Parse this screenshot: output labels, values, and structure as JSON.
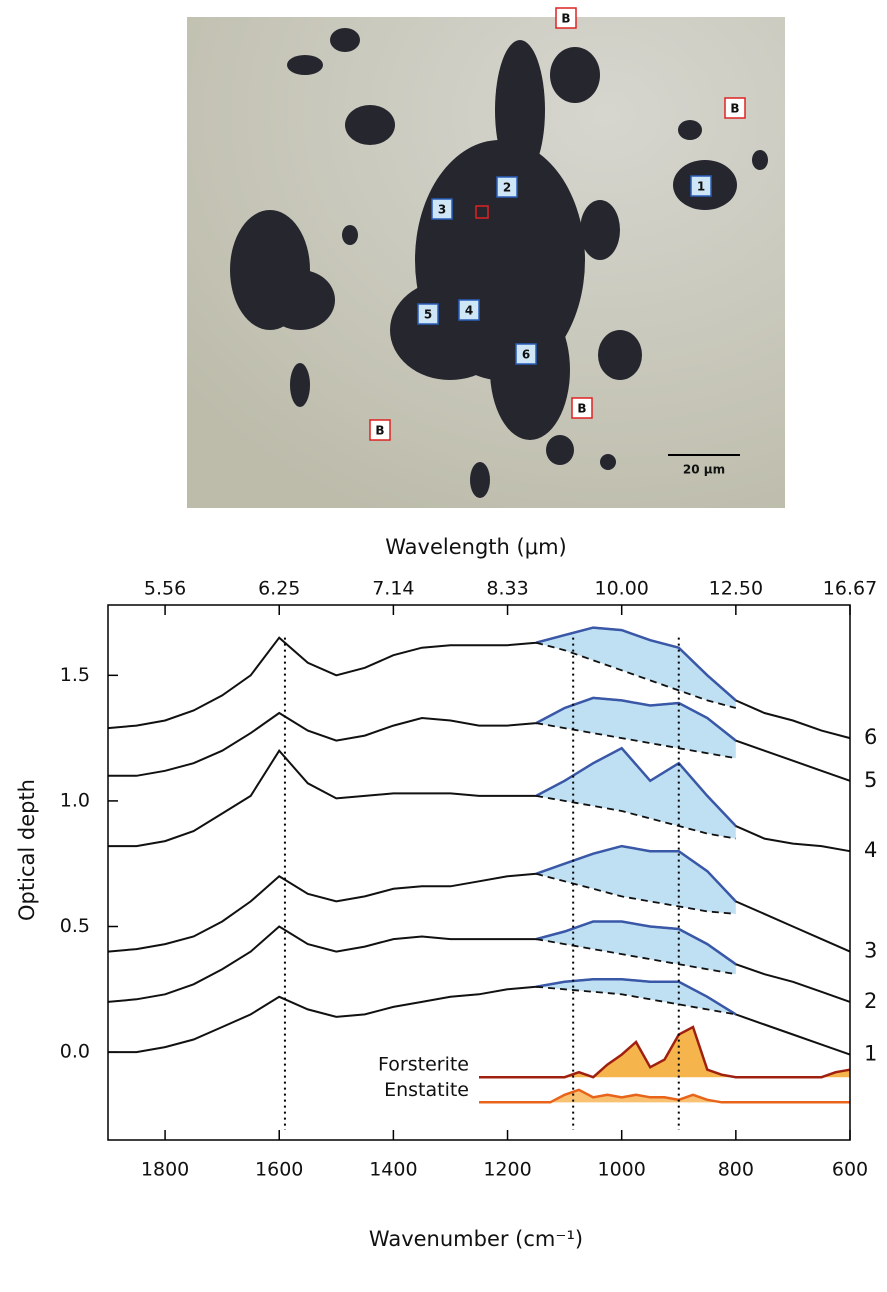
{
  "image": {
    "blue_labels": [
      "1",
      "2",
      "3",
      "4",
      "5",
      "6"
    ],
    "background_labels": [
      "B",
      "B",
      "B",
      "B"
    ],
    "scale_bar": "20 μm"
  },
  "chart_data": {
    "type": "line",
    "x_label": "Wavenumber (cm⁻¹)",
    "y_label": "Optical depth",
    "x2_label": "Wavelength (μm)",
    "x": [
      1900,
      1850,
      1800,
      1750,
      1700,
      1650,
      1600,
      1550,
      1500,
      1450,
      1400,
      1350,
      1300,
      1250,
      1200,
      1150,
      1100,
      1050,
      1000,
      950,
      900,
      850,
      800,
      750,
      700,
      650,
      600
    ],
    "xlim": [
      1900,
      600
    ],
    "xticks": [
      1800,
      1600,
      1400,
      1200,
      1000,
      800,
      600
    ],
    "x2ticks": [
      {
        "value": 1800,
        "label": "5.56"
      },
      {
        "value": 1600,
        "label": "6.25"
      },
      {
        "value": 1400,
        "label": "7.14"
      },
      {
        "value": 1200,
        "label": "8.33"
      },
      {
        "value": 1000,
        "label": "10.00"
      },
      {
        "value": 800,
        "label": "12.50"
      },
      {
        "value": 600,
        "label": "16.67"
      }
    ],
    "ylim": [
      -0.35,
      1.78
    ],
    "yticks": [
      {
        "value": 0,
        "label": "0.0"
      },
      0.5,
      {
        "value": 1,
        "label": "1.0"
      },
      1.5
    ],
    "markers": [
      1590,
      1085,
      900
    ],
    "continuum_x": [
      1150,
      1100,
      1050,
      1000,
      950,
      900,
      850,
      800
    ],
    "feature_color": "#3a58a8",
    "feature_fill": "#bfe0f3",
    "series": [
      {
        "name": "6",
        "color": "#111111",
        "values": [
          1.29,
          1.3,
          1.32,
          1.36,
          1.42,
          1.5,
          1.65,
          1.55,
          1.5,
          1.53,
          1.58,
          1.61,
          1.62,
          1.62,
          1.62,
          1.63,
          1.66,
          1.69,
          1.68,
          1.64,
          1.61,
          1.5,
          1.4,
          1.35,
          1.32,
          1.28,
          1.25
        ],
        "continuum": [
          1.63,
          1.6,
          1.56,
          1.52,
          1.48,
          1.44,
          1.4,
          1.37
        ]
      },
      {
        "name": "5",
        "color": "#111111",
        "values": [
          1.1,
          1.1,
          1.12,
          1.15,
          1.2,
          1.27,
          1.35,
          1.28,
          1.24,
          1.26,
          1.3,
          1.33,
          1.32,
          1.3,
          1.3,
          1.31,
          1.37,
          1.41,
          1.4,
          1.38,
          1.39,
          1.33,
          1.24,
          1.2,
          1.16,
          1.12,
          1.08
        ],
        "continuum": [
          1.31,
          1.29,
          1.27,
          1.25,
          1.23,
          1.21,
          1.19,
          1.17
        ]
      },
      {
        "name": "4",
        "color": "#111111",
        "values": [
          0.82,
          0.82,
          0.84,
          0.88,
          0.95,
          1.02,
          1.2,
          1.07,
          1.01,
          1.02,
          1.03,
          1.03,
          1.03,
          1.02,
          1.02,
          1.02,
          1.08,
          1.15,
          1.21,
          1.08,
          1.15,
          1.02,
          0.9,
          0.85,
          0.83,
          0.82,
          0.8
        ],
        "continuum": [
          1.02,
          1.0,
          0.98,
          0.96,
          0.93,
          0.9,
          0.87,
          0.85
        ]
      },
      {
        "name": "3",
        "color": "#111111",
        "values": [
          0.4,
          0.41,
          0.43,
          0.46,
          0.52,
          0.6,
          0.7,
          0.63,
          0.6,
          0.62,
          0.65,
          0.66,
          0.66,
          0.68,
          0.7,
          0.71,
          0.75,
          0.79,
          0.82,
          0.8,
          0.8,
          0.72,
          0.6,
          0.55,
          0.5,
          0.45,
          0.4
        ],
        "continuum": [
          0.71,
          0.68,
          0.65,
          0.62,
          0.6,
          0.58,
          0.56,
          0.55
        ]
      },
      {
        "name": "2",
        "color": "#111111",
        "values": [
          0.2,
          0.21,
          0.23,
          0.27,
          0.33,
          0.4,
          0.5,
          0.43,
          0.4,
          0.42,
          0.45,
          0.46,
          0.45,
          0.45,
          0.45,
          0.45,
          0.48,
          0.52,
          0.52,
          0.5,
          0.49,
          0.43,
          0.35,
          0.31,
          0.28,
          0.24,
          0.2
        ],
        "continuum": [
          0.45,
          0.43,
          0.41,
          0.39,
          0.37,
          0.35,
          0.33,
          0.31
        ]
      },
      {
        "name": "1",
        "color": "#111111",
        "values": [
          0,
          0,
          0.02,
          0.05,
          0.1,
          0.15,
          0.22,
          0.17,
          0.14,
          0.15,
          0.18,
          0.2,
          0.22,
          0.23,
          0.25,
          0.26,
          0.28,
          0.29,
          0.29,
          0.28,
          0.28,
          0.22,
          0.15,
          0.11,
          0.07,
          0.03,
          -0.01
        ],
        "continuum": [
          0.26,
          0.25,
          0.24,
          0.23,
          0.21,
          0.19,
          0.17,
          0.15
        ]
      }
    ],
    "ref_x": [
      1250,
      1225,
      1200,
      1175,
      1150,
      1125,
      1100,
      1075,
      1050,
      1025,
      1000,
      975,
      950,
      925,
      900,
      875,
      850,
      825,
      800,
      775,
      750,
      725,
      700,
      675,
      650,
      625,
      600
    ],
    "references": [
      {
        "name": "Forsterite",
        "color": "#a0200f",
        "fill": "#f6b54c",
        "values": [
          -0.1,
          -0.1,
          -0.1,
          -0.1,
          -0.1,
          -0.1,
          -0.1,
          -0.08,
          -0.1,
          -0.05,
          -0.01,
          0.04,
          -0.06,
          -0.03,
          0.07,
          0.1,
          -0.07,
          -0.09,
          -0.1,
          -0.1,
          -0.1,
          -0.1,
          -0.1,
          -0.1,
          -0.1,
          -0.08,
          -0.07
        ]
      },
      {
        "name": "Enstatite",
        "color": "#e8641b",
        "fill": "#f8c272",
        "values": [
          -0.2,
          -0.2,
          -0.2,
          -0.2,
          -0.2,
          -0.2,
          -0.17,
          -0.15,
          -0.18,
          -0.17,
          -0.18,
          -0.17,
          -0.18,
          -0.18,
          -0.19,
          -0.17,
          -0.19,
          -0.2,
          -0.2,
          -0.2,
          -0.2,
          -0.2,
          -0.2,
          -0.2,
          -0.2,
          -0.2,
          -0.2
        ]
      }
    ]
  }
}
